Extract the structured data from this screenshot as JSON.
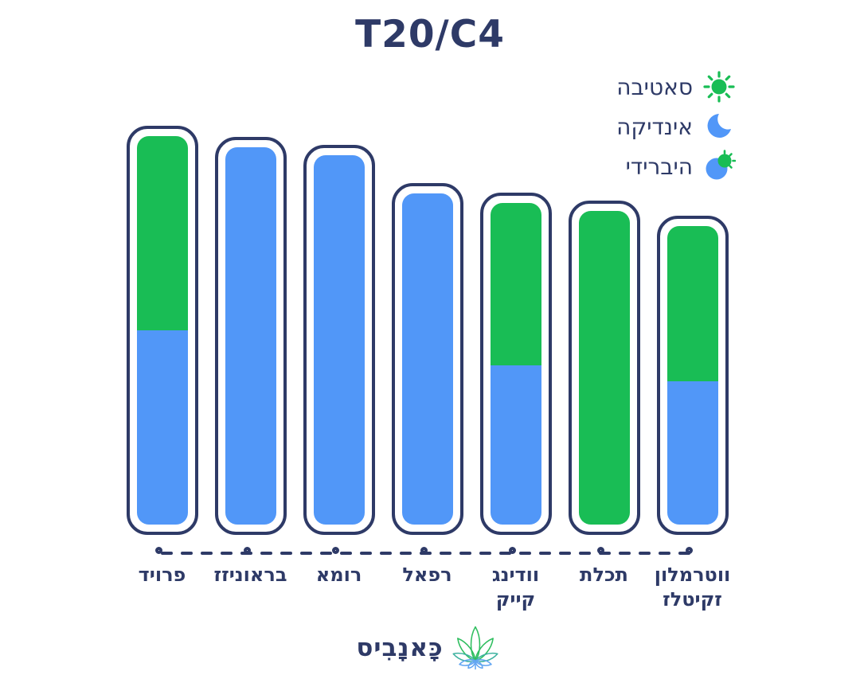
{
  "title": "T20/C4",
  "colors": {
    "navy": "#2e3a67",
    "green": "#19bd55",
    "blue": "#5197f8",
    "background": "#ffffff"
  },
  "legend": {
    "items": [
      {
        "label": "סאטיבה",
        "icon": "sun-icon",
        "type": "sativa",
        "color": "#19bd55"
      },
      {
        "label": "אינדיקה",
        "icon": "moon-icon",
        "type": "indica",
        "color": "#5197f8"
      },
      {
        "label": "היברידי",
        "icon": "sun-moon-icon",
        "type": "hybrid",
        "color": "#5197f8"
      }
    ]
  },
  "chart_data": {
    "type": "bar",
    "stacked": true,
    "orientation": "vertical",
    "value_axis_visible": false,
    "ylim": [
      0,
      100
    ],
    "title": "T20/C4",
    "legend_position": "top-right",
    "categories": [
      "פרויד",
      "בראוניזז",
      "רומא",
      "רפאל",
      "וודינג קייק",
      "תכלת",
      "ווטרמלון זקיטלז"
    ],
    "bars": [
      {
        "label": "פרויד",
        "label_lines": [
          "פרויד"
        ],
        "type": "hybrid",
        "total_pct": 100,
        "sativa_pct": 50
      },
      {
        "label": "בראוניזז",
        "label_lines": [
          "בראוניזז"
        ],
        "type": "indica",
        "total_pct": 97.1,
        "sativa_pct": 0
      },
      {
        "label": "רומא",
        "label_lines": [
          "רומא"
        ],
        "type": "indica",
        "total_pct": 95.1,
        "sativa_pct": 0
      },
      {
        "label": "רפאל",
        "label_lines": [
          "רפאל"
        ],
        "type": "indica",
        "total_pct": 85.2,
        "sativa_pct": 0
      },
      {
        "label": "וודינג קייק",
        "label_lines": [
          "וודינג",
          "קייק"
        ],
        "type": "hybrid",
        "total_pct": 82.8,
        "sativa_pct": 50.5
      },
      {
        "label": "תכלת",
        "label_lines": [
          "תכלת"
        ],
        "type": "sativa",
        "total_pct": 80.7,
        "sativa_pct": 100
      },
      {
        "label": "ווטרמלון זקיטלז",
        "label_lines": [
          "ווטרמלון",
          "זקיטלז"
        ],
        "type": "hybrid",
        "total_pct": 76.8,
        "sativa_pct": 52
      }
    ],
    "series_legend": [
      {
        "name": "סאטיבה",
        "color": "#19bd55"
      },
      {
        "name": "אינדיקה",
        "color": "#5197f8"
      },
      {
        "name": "היברידי",
        "color": "mixed"
      }
    ]
  },
  "footer": {
    "brand": "כָּאנָבִיס",
    "logo": "cannabis-leaf-icon"
  }
}
